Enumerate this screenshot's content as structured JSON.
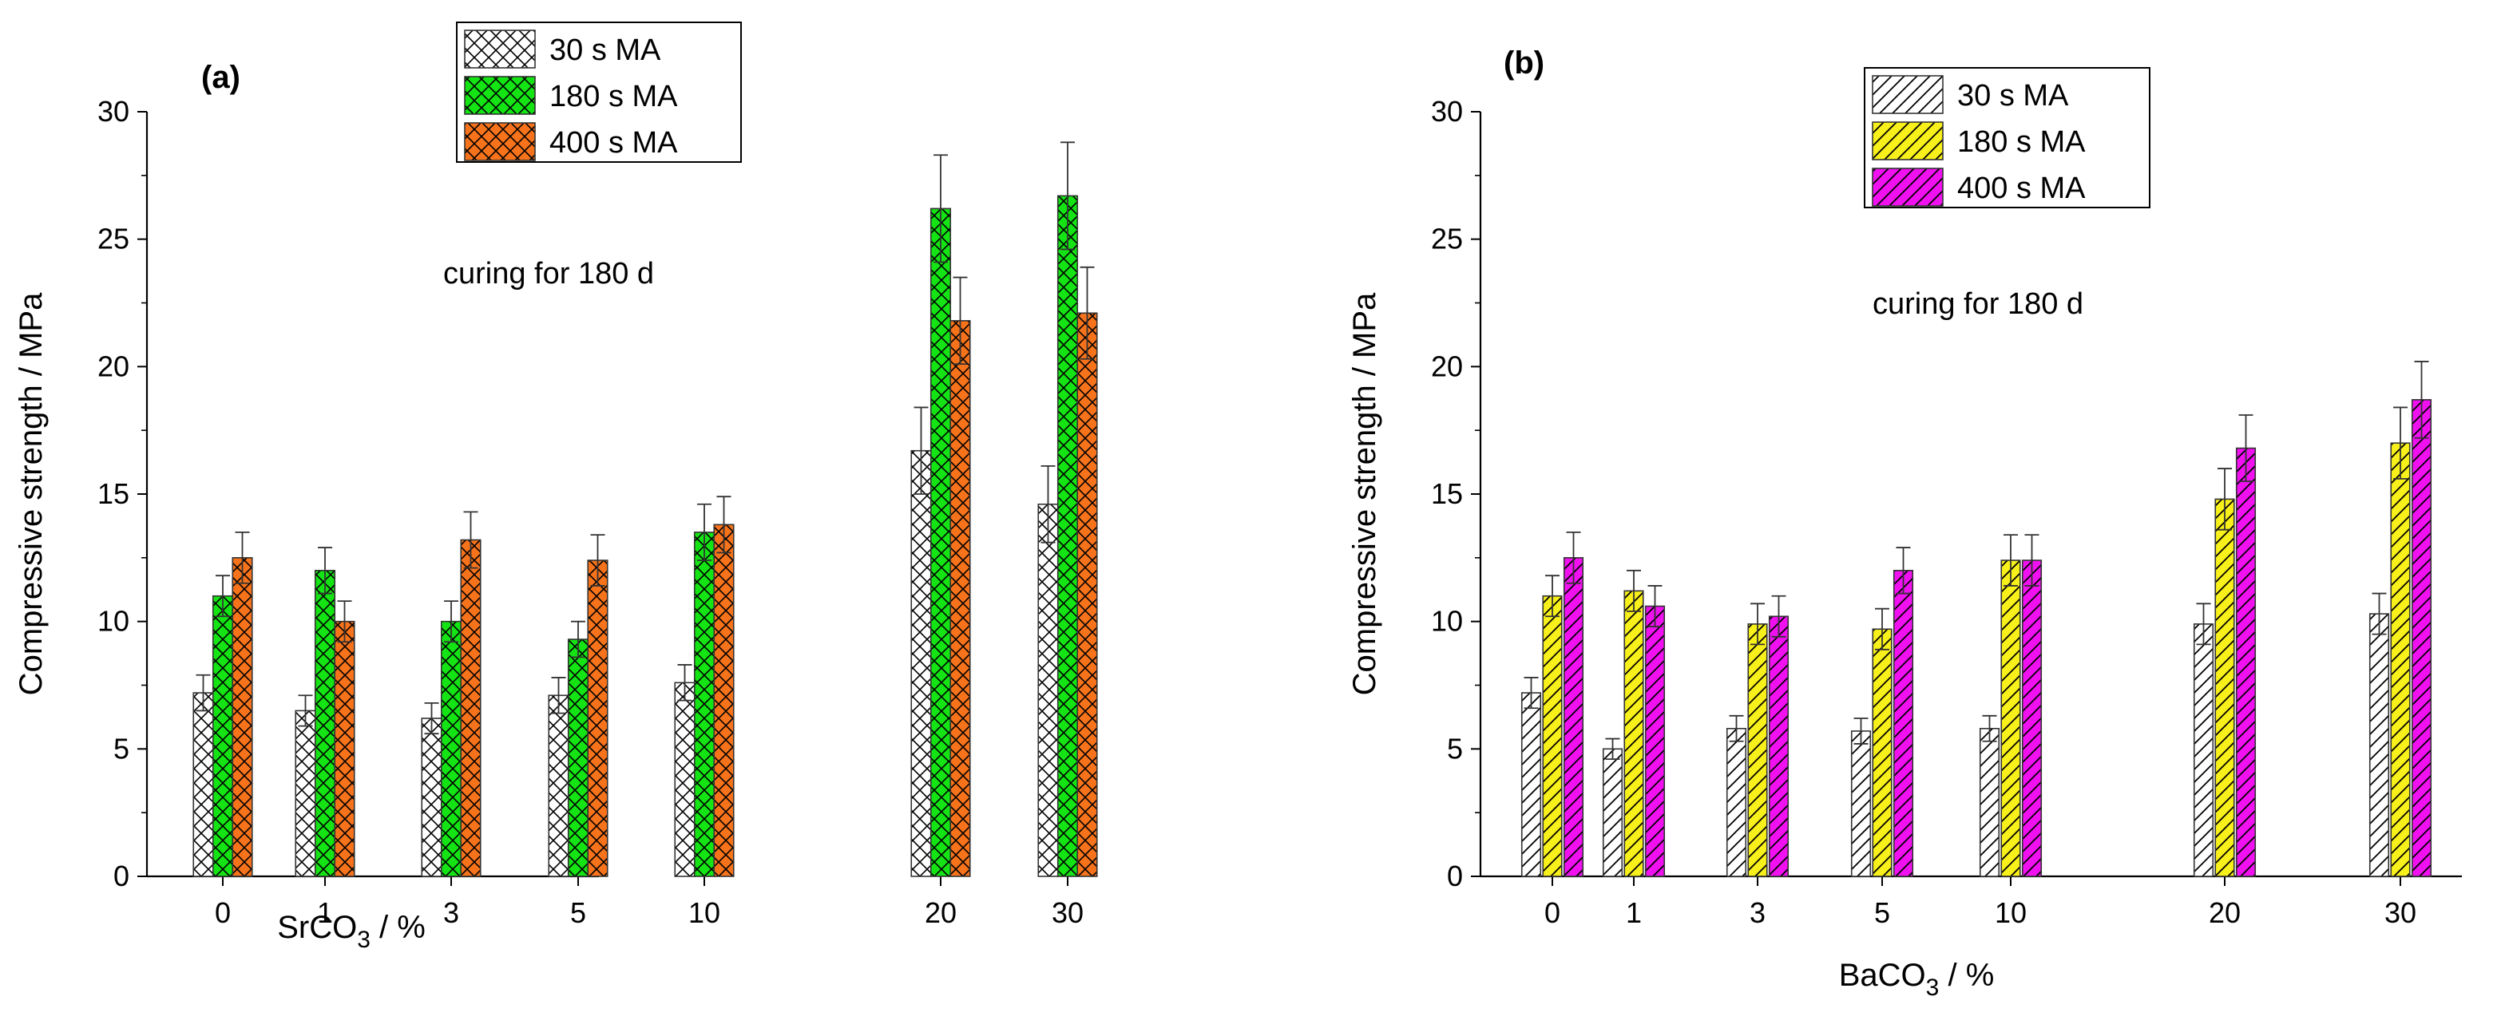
{
  "chart_data": [
    {
      "type": "bar",
      "panel_label": "(a)",
      "annotation": "curing for 180 d",
      "xlabel_main": "SrCO",
      "xlabel_sub": "3",
      "xlabel_tail": " / %",
      "ylabel": "Compressive strength / MPa",
      "ylim": [
        0,
        30
      ],
      "yticks": [
        "0",
        "5",
        "10",
        "15",
        "20",
        "25",
        "30"
      ],
      "categories": [
        "0",
        "1",
        "3",
        "5",
        "10",
        "20",
        "30"
      ],
      "legend_position": "top-center",
      "series": [
        {
          "name": "30 s MA",
          "color": "#ffffff",
          "pattern": "crosshatch",
          "values": [
            7.2,
            6.5,
            6.2,
            7.1,
            7.6,
            16.7,
            14.6
          ],
          "errors": [
            0.7,
            0.6,
            0.6,
            0.7,
            0.7,
            1.7,
            1.5
          ]
        },
        {
          "name": "180 s MA",
          "color": "#14e414",
          "pattern": "crosshatch",
          "values": [
            11.0,
            12.0,
            10.0,
            9.3,
            13.5,
            26.2,
            26.7
          ],
          "errors": [
            0.8,
            0.9,
            0.8,
            0.7,
            1.1,
            2.1,
            2.1
          ]
        },
        {
          "name": "400 s MA",
          "color": "#f7731b",
          "pattern": "crosshatch",
          "values": [
            12.5,
            10.0,
            13.2,
            12.4,
            13.8,
            21.8,
            22.1
          ],
          "errors": [
            1.0,
            0.8,
            1.1,
            1.0,
            1.1,
            1.7,
            1.8
          ]
        }
      ]
    },
    {
      "type": "bar",
      "panel_label": "(b)",
      "annotation": "curing for 180 d",
      "xlabel_main": "BaCO",
      "xlabel_sub": "3",
      "xlabel_tail": " / %",
      "ylabel": "Compressive strength / MPa",
      "ylim": [
        0,
        30
      ],
      "yticks": [
        "0",
        "5",
        "10",
        "15",
        "20",
        "25",
        "30"
      ],
      "categories": [
        "0",
        "1",
        "3",
        "5",
        "10",
        "20",
        "30"
      ],
      "legend_position": "top-center",
      "series": [
        {
          "name": "30 s MA",
          "color": "#ffffff",
          "pattern": "diagonal",
          "values": [
            7.2,
            5.0,
            5.8,
            5.7,
            5.8,
            9.9,
            10.3
          ],
          "errors": [
            0.6,
            0.4,
            0.5,
            0.5,
            0.5,
            0.8,
            0.8
          ]
        },
        {
          "name": "180 s MA",
          "color": "#f8f01a",
          "pattern": "diagonal",
          "values": [
            11.0,
            11.2,
            9.9,
            9.7,
            12.4,
            14.8,
            17.0
          ],
          "errors": [
            0.8,
            0.8,
            0.8,
            0.8,
            1.0,
            1.2,
            1.4
          ]
        },
        {
          "name": "400 s MA",
          "color": "#f010f0",
          "pattern": "diagonal",
          "values": [
            12.5,
            10.6,
            10.2,
            12.0,
            12.4,
            16.8,
            18.7
          ],
          "errors": [
            1.0,
            0.8,
            0.8,
            0.9,
            1.0,
            1.3,
            1.5
          ]
        }
      ]
    }
  ]
}
